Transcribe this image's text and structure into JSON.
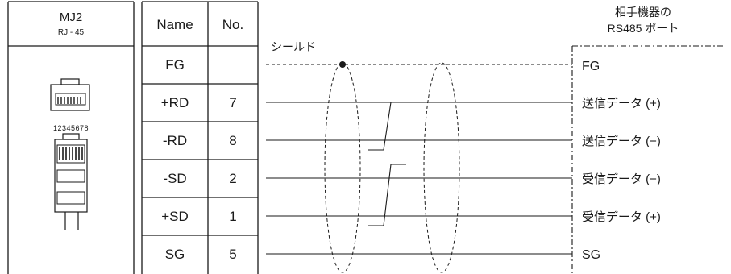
{
  "connector": {
    "title": "MJ2",
    "subtitle": "RJ - 45",
    "pin_numbers": "12345678"
  },
  "table": {
    "headers": {
      "name": "Name",
      "no": "No."
    },
    "rows": [
      {
        "name": "FG",
        "no": ""
      },
      {
        "name": "+RD",
        "no": "7"
      },
      {
        "name": "-RD",
        "no": "8"
      },
      {
        "name": "-SD",
        "no": "2"
      },
      {
        "name": "+SD",
        "no": "1"
      },
      {
        "name": "SG",
        "no": "5"
      }
    ]
  },
  "shield_label": "シールド",
  "remote": {
    "title_line1": "相手機器の",
    "title_line2": "RS485 ポート",
    "signals": [
      "FG",
      "送信データ (+)",
      "送信データ (−)",
      "受信データ (−)",
      "受信データ (+)",
      "SG"
    ]
  }
}
